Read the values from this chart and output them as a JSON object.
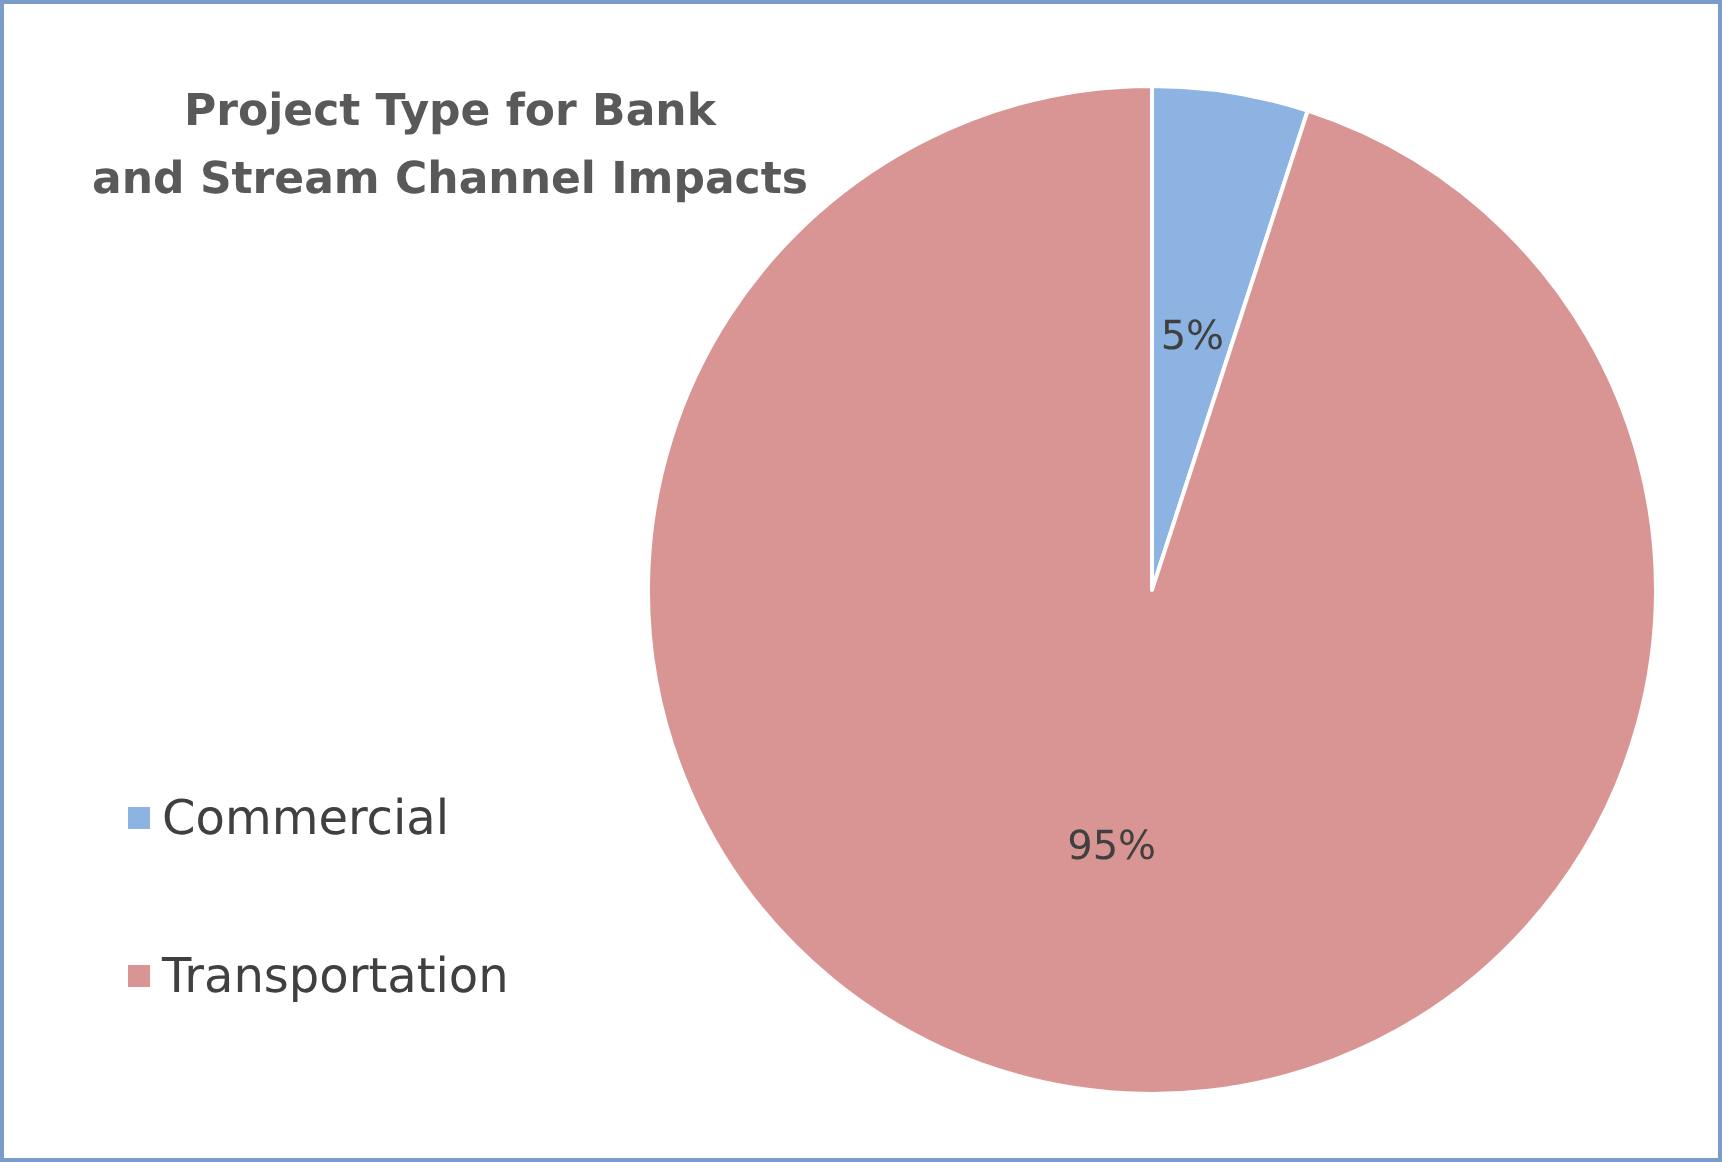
{
  "chart_data": {
    "type": "pie",
    "title": "Project Type for Bank\nand Stream Channel Impacts",
    "categories": [
      "Commercial",
      "Transportation"
    ],
    "values": [
      5,
      95
    ],
    "colors": [
      "#8db3e2",
      "#d99594"
    ],
    "value_labels": [
      "5%",
      "95%"
    ],
    "legend": "left"
  }
}
